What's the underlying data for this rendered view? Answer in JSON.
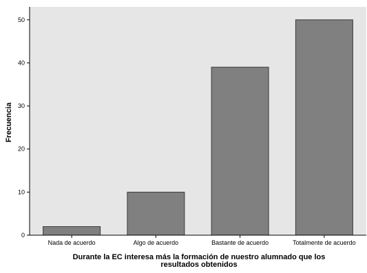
{
  "chart_data": {
    "type": "bar",
    "categories": [
      "Nada de acuerdo",
      "Algo de acuerdo",
      "Bastante de acuerdo",
      "Totalmente de acuerdo"
    ],
    "values": [
      2,
      10,
      39,
      50
    ],
    "xlabel_lines": [
      "Durante la EC interesa más la formación de nuestro alumnado que los",
      "resultados obtenidos"
    ],
    "ylabel": "Frecuencia",
    "ylim": [
      0,
      53
    ],
    "yticks": [
      0,
      10,
      20,
      30,
      40,
      50
    ],
    "grid": false,
    "legend": "none",
    "colors": {
      "bar_fill": "#808080",
      "bar_stroke": "#3a3a3a",
      "plot_background": "#e6e6e6",
      "page_background": "#ffffff",
      "axis": "#000000"
    }
  }
}
